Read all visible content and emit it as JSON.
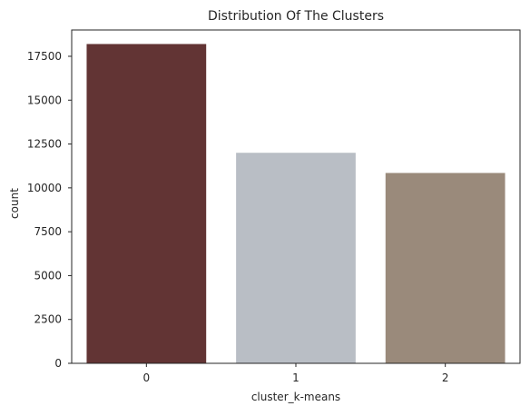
{
  "chart_data": {
    "type": "bar",
    "title": "Distribution Of The Clusters",
    "xlabel": "cluster_k-means",
    "ylabel": "count",
    "categories": [
      "0",
      "1",
      "2"
    ],
    "values": [
      18200,
      12000,
      10850
    ],
    "colors": [
      "#623434",
      "#b9bec5",
      "#9a8a7b"
    ],
    "ylim": [
      0,
      19000
    ],
    "yticks": [
      0,
      2500,
      5000,
      7500,
      10000,
      12500,
      15000,
      17500
    ],
    "ytick_labels": [
      "0",
      "2500",
      "5000",
      "7500",
      "10000",
      "12500",
      "15000",
      "17500"
    ],
    "grid": false,
    "legend": "none",
    "frame_color": "#262626"
  }
}
